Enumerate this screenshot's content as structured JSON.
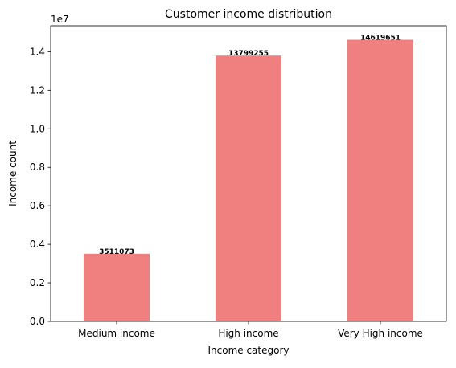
{
  "chart_data": {
    "type": "bar",
    "title": "Customer income distribution",
    "xlabel": "Income category",
    "ylabel": "Income count",
    "y_scale_label": "1e7",
    "categories": [
      "Medium income",
      "High income",
      "Very High income"
    ],
    "values": [
      3511073,
      13799255,
      14619651
    ],
    "data_labels": [
      "3511073",
      "13799255",
      "14619651"
    ],
    "ylim": [
      0,
      15350633
    ],
    "yticks": [
      0,
      2000000,
      4000000,
      6000000,
      8000000,
      10000000,
      12000000,
      14000000
    ],
    "ytick_labels": [
      "0.0",
      "0.2",
      "0.4",
      "0.6",
      "0.8",
      "1.0",
      "1.2",
      "1.4"
    ],
    "bar_color": "#F08080",
    "grid": false,
    "legend": "none"
  }
}
